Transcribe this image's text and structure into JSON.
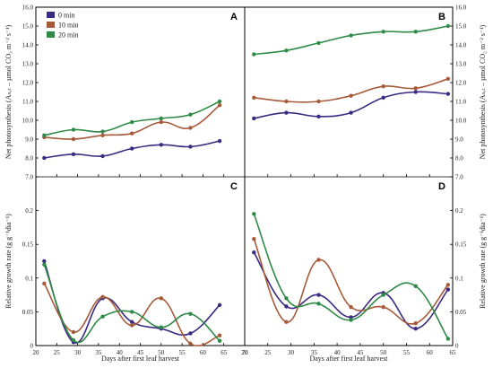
{
  "colors": {
    "0 min": "#3b2a82",
    "10 min": "#a65a3a",
    "20 min": "#2e8a46"
  },
  "chart_data": [
    {
      "panel": "A",
      "type": "line",
      "xlabel": "",
      "ylabel": "Net photosynthesis (Aₙₑₜ – µmol CO₂ m⁻² s⁻¹)",
      "xlim": [
        20,
        70
      ],
      "ylim": [
        7.0,
        16.0
      ],
      "yticks": [
        "7.0",
        "8.0",
        "9.0",
        "10.0",
        "11.0",
        "12.0",
        "13.0",
        "14.0",
        "15.0",
        "16.0"
      ],
      "xticks": [
        "20",
        "25",
        "30",
        "35",
        "40",
        "45",
        "50",
        "55",
        "60",
        "65",
        "70"
      ],
      "x": [
        22,
        29,
        36,
        43,
        50,
        57,
        64
      ],
      "series": [
        {
          "name": "0 min",
          "values": [
            8.0,
            8.2,
            8.1,
            8.5,
            8.7,
            8.6,
            8.9
          ]
        },
        {
          "name": "10 min",
          "values": [
            9.1,
            9.0,
            9.2,
            9.3,
            9.9,
            9.6,
            10.8
          ]
        },
        {
          "name": "20 min",
          "values": [
            9.2,
            9.5,
            9.4,
            9.9,
            10.1,
            10.3,
            11.0
          ]
        }
      ]
    },
    {
      "panel": "B",
      "type": "line",
      "xlabel": "",
      "ylabel": "Net photosynthesis (Aₙₑₜ – µmol CO₂ m⁻² s⁻¹)",
      "xlim": [
        20,
        65
      ],
      "ylim": [
        7.0,
        16.0
      ],
      "yticks": [
        "7.0",
        "8.0",
        "9.0",
        "10.0",
        "11.0",
        "12.0",
        "13.0",
        "14.0",
        "15.0",
        "16.0"
      ],
      "xticks": [
        "20",
        "25",
        "30",
        "35",
        "40",
        "45",
        "50",
        "55",
        "60",
        "65"
      ],
      "x": [
        22,
        29,
        36,
        43,
        50,
        57,
        64
      ],
      "series": [
        {
          "name": "0 min",
          "values": [
            10.1,
            10.4,
            10.2,
            10.4,
            11.2,
            11.5,
            11.4
          ]
        },
        {
          "name": "10 min",
          "values": [
            11.2,
            11.0,
            11.0,
            11.3,
            11.8,
            11.7,
            12.2
          ]
        },
        {
          "name": "20 min",
          "values": [
            13.5,
            13.7,
            14.1,
            14.5,
            14.7,
            14.7,
            15.0
          ]
        }
      ]
    },
    {
      "panel": "C",
      "type": "line",
      "xlabel": "Days after first leaf harvest",
      "ylabel": "Relative growth rate (g g⁻¹dia⁻¹)",
      "xlim": [
        20,
        70
      ],
      "ylim": [
        0,
        0.25
      ],
      "yticks": [
        "0",
        "0.05",
        "0.1",
        "0.15",
        "0.2"
      ],
      "xticks": [
        "20",
        "25",
        "30",
        "35",
        "40",
        "45",
        "50",
        "55",
        "60",
        "65",
        "70"
      ],
      "x": [
        22,
        29,
        36,
        43,
        50,
        57,
        64
      ],
      "series": [
        {
          "name": "0 min",
          "values": [
            0.125,
            0.005,
            0.07,
            0.035,
            0.025,
            0.018,
            0.06
          ]
        },
        {
          "name": "10 min",
          "values": [
            0.092,
            0.02,
            0.072,
            0.03,
            0.07,
            0.003,
            0.015
          ]
        },
        {
          "name": "20 min",
          "values": [
            0.12,
            0.008,
            0.043,
            0.05,
            0.027,
            0.047,
            0.007
          ]
        }
      ]
    },
    {
      "panel": "D",
      "type": "line",
      "xlabel": "Days after first leaf harvest",
      "ylabel": "Relative growth rate (g g⁻¹dia⁻¹)",
      "xlim": [
        20,
        65
      ],
      "ylim": [
        0,
        0.25
      ],
      "yticks": [
        "0",
        "0.05",
        "0.1",
        "0.15",
        "0.2"
      ],
      "xticks": [
        "20",
        "25",
        "30",
        "35",
        "40",
        "45",
        "50",
        "55",
        "60",
        "65"
      ],
      "x": [
        22,
        29,
        36,
        43,
        50,
        57,
        64
      ],
      "series": [
        {
          "name": "0 min",
          "values": [
            0.138,
            0.058,
            0.075,
            0.042,
            0.078,
            0.025,
            0.083
          ]
        },
        {
          "name": "10 min",
          "values": [
            0.158,
            0.035,
            0.127,
            0.057,
            0.057,
            0.033,
            0.09
          ]
        },
        {
          "name": "20 min",
          "values": [
            0.195,
            0.07,
            0.062,
            0.038,
            0.075,
            0.088,
            0.01
          ]
        }
      ]
    }
  ],
  "legend": {
    "position": "top-left",
    "items": [
      "0 min",
      "10 min",
      "20 min"
    ]
  }
}
